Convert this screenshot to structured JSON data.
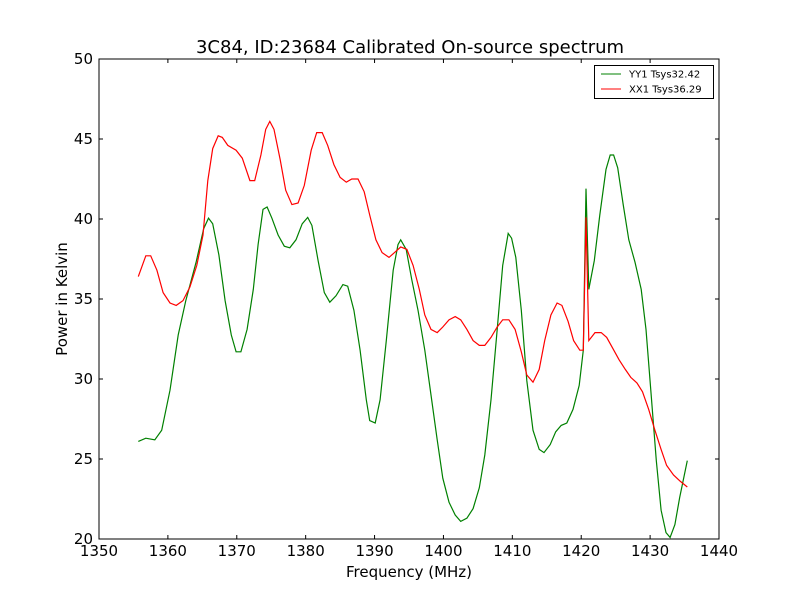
{
  "chart_data": {
    "type": "line",
    "title": "3C84, ID:23684 Calibrated On-source spectrum",
    "xlabel": "Frequency (MHz)",
    "ylabel": "Power in Kelvin",
    "xlim": [
      1350,
      1440
    ],
    "ylim": [
      20,
      50
    ],
    "xticks": [
      "1350",
      "1360",
      "1370",
      "1380",
      "1390",
      "1400",
      "1410",
      "1420",
      "1430",
      "1440"
    ],
    "yticks": [
      "20",
      "25",
      "30",
      "35",
      "40",
      "45",
      "50"
    ],
    "grid": false,
    "legend_position": "top-right",
    "series": [
      {
        "name": "YY1 Tsys32.42",
        "color": "#008000",
        "x": [
          1355.7,
          1356.8,
          1358.1,
          1359.1,
          1360.3,
          1361.5,
          1362.6,
          1364.1,
          1365.2,
          1365.9,
          1366.5,
          1367.4,
          1368.3,
          1369.2,
          1369.9,
          1370.6,
          1371.5,
          1372.4,
          1373.1,
          1373.8,
          1374.4,
          1375.1,
          1376.0,
          1376.9,
          1377.7,
          1378.6,
          1379.5,
          1380.3,
          1380.9,
          1381.8,
          1382.7,
          1383.5,
          1384.4,
          1385.4,
          1386.1,
          1387.0,
          1387.9,
          1388.8,
          1389.3,
          1390.1,
          1390.8,
          1391.7,
          1392.7,
          1393.4,
          1393.8,
          1394.6,
          1395.4,
          1396.3,
          1397.3,
          1398.2,
          1399.1,
          1399.9,
          1400.8,
          1401.7,
          1402.5,
          1403.4,
          1404.3,
          1405.2,
          1406.0,
          1406.9,
          1407.8,
          1408.6,
          1409.4,
          1409.9,
          1410.5,
          1411.3,
          1412.1,
          1413.0,
          1413.9,
          1414.6,
          1415.5,
          1416.3,
          1417.1,
          1417.9,
          1418.8,
          1419.7,
          1420.3,
          1420.7,
          1421.1,
          1421.9,
          1422.7,
          1423.6,
          1424.2,
          1424.7,
          1425.3,
          1426.1,
          1426.9,
          1427.8,
          1428.7,
          1429.4,
          1430.1,
          1430.9,
          1431.6,
          1432.3,
          1432.9,
          1433.6,
          1434.3,
          1435.4
        ],
        "y": [
          26.1,
          26.3,
          26.2,
          26.8,
          29.3,
          32.75,
          34.9,
          37.3,
          39.4,
          40.05,
          39.7,
          37.75,
          34.9,
          32.75,
          31.7,
          31.7,
          33.1,
          35.6,
          38.4,
          40.6,
          40.75,
          40.05,
          39.0,
          38.3,
          38.2,
          38.7,
          39.7,
          40.1,
          39.6,
          37.4,
          35.4,
          34.8,
          35.2,
          35.9,
          35.8,
          34.3,
          31.8,
          28.7,
          27.4,
          27.25,
          28.7,
          32.4,
          36.8,
          38.4,
          38.7,
          38.1,
          36.2,
          34.3,
          31.8,
          29.0,
          26.2,
          23.8,
          22.3,
          21.5,
          21.1,
          21.3,
          21.9,
          23.2,
          25.25,
          28.7,
          33.1,
          37.1,
          39.1,
          38.8,
          37.6,
          34.3,
          29.9,
          26.8,
          25.6,
          25.4,
          25.9,
          26.7,
          27.1,
          27.25,
          28.1,
          29.6,
          31.8,
          41.9,
          35.6,
          37.4,
          40.25,
          43.1,
          44.0,
          44.0,
          43.2,
          40.9,
          38.7,
          37.3,
          35.6,
          33.1,
          29.3,
          24.9,
          21.8,
          20.4,
          20.1,
          20.9,
          22.6,
          24.9
        ]
      },
      {
        "name": "XX1 Tsys36.29",
        "color": "#ff0000",
        "x": [
          1355.7,
          1356.8,
          1357.5,
          1358.4,
          1359.3,
          1360.3,
          1361.2,
          1362.2,
          1363.2,
          1364.2,
          1365.1,
          1365.8,
          1366.5,
          1367.3,
          1367.9,
          1368.7,
          1369.9,
          1370.8,
          1371.9,
          1372.6,
          1373.5,
          1374.2,
          1374.8,
          1375.4,
          1376.3,
          1377.1,
          1378.0,
          1378.9,
          1379.8,
          1380.8,
          1381.6,
          1382.4,
          1383.2,
          1384.1,
          1385.0,
          1385.9,
          1386.7,
          1387.6,
          1388.5,
          1389.3,
          1390.2,
          1391.1,
          1392.1,
          1392.9,
          1393.8,
          1394.7,
          1395.6,
          1396.5,
          1397.3,
          1398.2,
          1399.1,
          1399.9,
          1400.8,
          1401.7,
          1402.5,
          1403.4,
          1404.3,
          1405.2,
          1406.0,
          1406.9,
          1407.8,
          1408.6,
          1409.5,
          1410.4,
          1411.3,
          1412.1,
          1413.0,
          1413.9,
          1414.7,
          1415.6,
          1416.5,
          1417.2,
          1418.1,
          1418.9,
          1419.8,
          1420.3,
          1420.7,
          1421.1,
          1422.0,
          1422.9,
          1423.7,
          1424.6,
          1425.5,
          1426.4,
          1427.2,
          1428.1,
          1428.9,
          1429.8,
          1430.7,
          1431.6,
          1432.4,
          1433.4,
          1434.4,
          1435.4
        ],
        "y": [
          36.4,
          37.7,
          37.7,
          36.8,
          35.4,
          34.75,
          34.6,
          34.9,
          35.75,
          37.1,
          39.0,
          42.4,
          44.4,
          45.2,
          45.1,
          44.6,
          44.3,
          43.8,
          42.4,
          42.4,
          44.0,
          45.6,
          46.1,
          45.6,
          43.7,
          41.8,
          40.9,
          41.0,
          42.1,
          44.3,
          45.4,
          45.4,
          44.6,
          43.4,
          42.6,
          42.3,
          42.5,
          42.5,
          41.7,
          40.25,
          38.7,
          37.9,
          37.6,
          37.9,
          38.25,
          38.1,
          37.1,
          35.6,
          34.0,
          33.1,
          32.9,
          33.25,
          33.7,
          33.9,
          33.7,
          33.1,
          32.4,
          32.1,
          32.1,
          32.6,
          33.25,
          33.7,
          33.7,
          33.1,
          31.7,
          30.25,
          29.8,
          30.6,
          32.4,
          34.0,
          34.75,
          34.6,
          33.6,
          32.4,
          31.8,
          31.8,
          40.1,
          32.4,
          32.9,
          32.9,
          32.6,
          31.9,
          31.2,
          30.6,
          30.1,
          29.75,
          29.2,
          28.1,
          26.8,
          25.6,
          24.6,
          24.0,
          23.6,
          23.25
        ]
      }
    ]
  }
}
